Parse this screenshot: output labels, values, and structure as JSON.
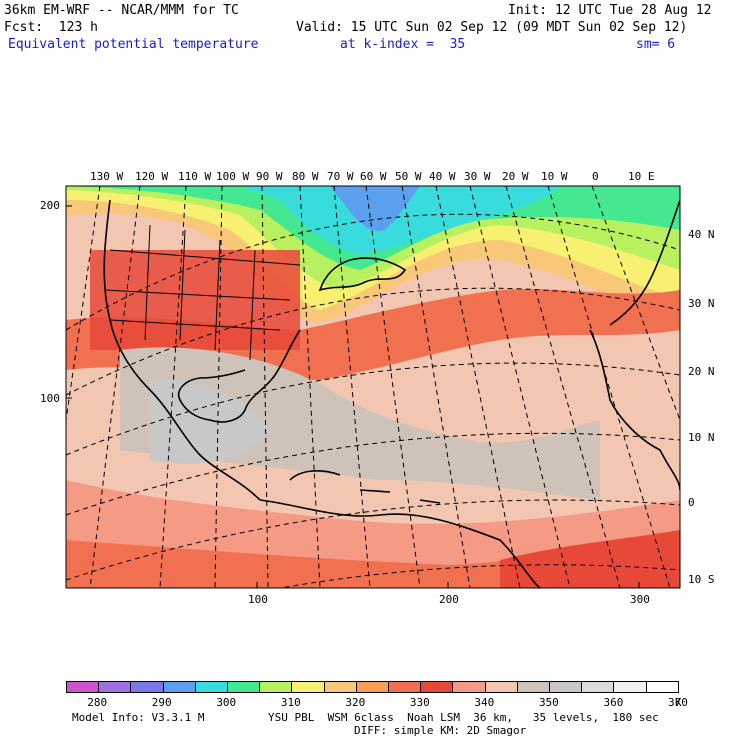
{
  "header": {
    "model": "36km EM-WRF -- NCAR/MMM for TC",
    "forecast": "Fcst:  123 h",
    "init": "Init: 12 UTC Tue 28 Aug 12",
    "valid": "Valid: 15 UTC Sun 02 Sep 12 (09 MDT Sun 02 Sep 12)",
    "field": "Equivalent potential temperature",
    "level": "at k-index =  35",
    "smoothing": "sm= 6"
  },
  "map": {
    "top_longitudes": [
      "130 W",
      "120 W",
      "110 W",
      "100 W",
      "90 W",
      "80 W",
      "70 W",
      "60 W",
      "50 W",
      "40 W",
      "30 W",
      "20 W",
      "10 W",
      "0",
      "10 E"
    ],
    "right_latitudes": [
      "40 N",
      "30 N",
      "20 N",
      "10 N",
      "0",
      "10 S"
    ],
    "left_grid_ticks": [
      "200",
      "100"
    ],
    "bottom_grid_ticks": [
      "100",
      "200",
      "300"
    ]
  },
  "colorbar": {
    "labels": [
      "280",
      "290",
      "300",
      "310",
      "320",
      "330",
      "340",
      "350",
      "360",
      "370"
    ],
    "unit": "K",
    "colors": [
      "#cc55cc",
      "#a070e0",
      "#7878e8",
      "#5aa0ee",
      "#38dcdc",
      "#44e890",
      "#b8f060",
      "#f8f070",
      "#f8c878",
      "#f8a050",
      "#f07050",
      "#e84838",
      "#f59a85",
      "#f2c6b0",
      "#cfc3b9",
      "#c8c8c8",
      "#dcdcdc",
      "#f0f0f0",
      "#ffffff"
    ]
  },
  "footer": {
    "model_info": "Model Info: V3.3.1 M",
    "physics1": "YSU PBL  WSM 6class  Noah LSM  36 km,   35 levels,  180 sec",
    "physics2": "DIFF: simple KM: 2D Smagor"
  }
}
